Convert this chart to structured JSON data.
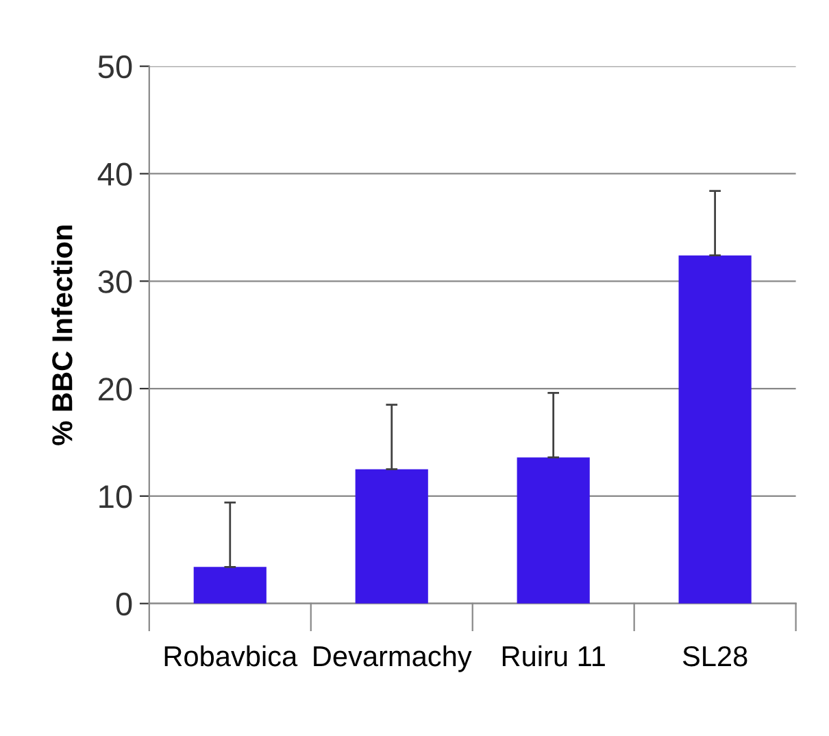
{
  "chart_data": {
    "type": "bar",
    "ylabel": "% BBC Infection",
    "categories": [
      "Robavbica",
      "Devarmachy",
      "Ruiru 11",
      "SL28"
    ],
    "values": [
      3.4,
      12.5,
      13.6,
      32.4
    ],
    "errors": [
      [
        3.4,
        9.4
      ],
      [
        12.5,
        18.5
      ],
      [
        13.6,
        19.6
      ],
      [
        32.4,
        38.4
      ]
    ],
    "color": "#3a17e8",
    "ylim": [
      0,
      50
    ],
    "yticks": [
      0,
      10,
      20,
      30,
      40,
      50
    ],
    "grid": "y"
  }
}
